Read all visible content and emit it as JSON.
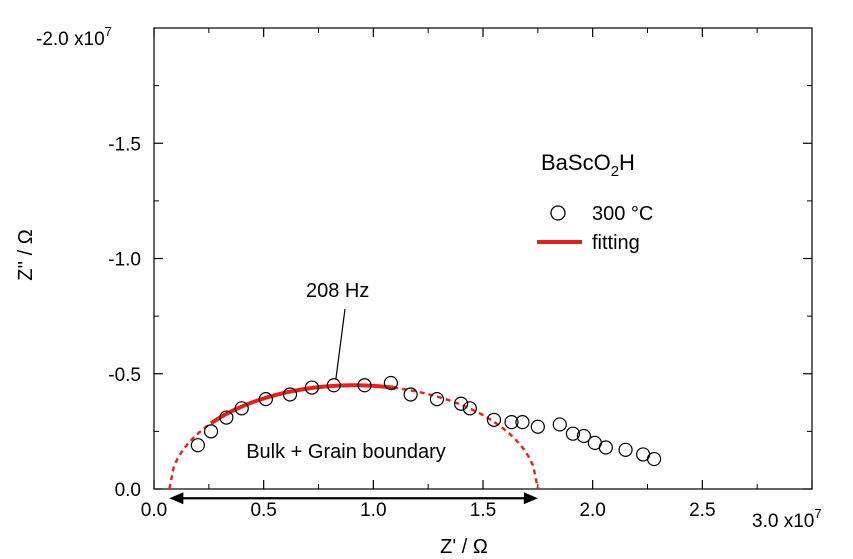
{
  "chart_data": {
    "type": "scatter",
    "xlabel": "Z' / Ω",
    "ylabel": "Z'' / Ω",
    "xlim": [
      0,
      30000000.0
    ],
    "ylim": [
      0,
      -20000000.0
    ],
    "y_inverted": true,
    "grid": false,
    "x_ticks": [
      {
        "value": 0.0,
        "label": "0.0"
      },
      {
        "value": 5000000.0,
        "label": "0.5"
      },
      {
        "value": 10000000.0,
        "label": "1.0"
      },
      {
        "value": 15000000.0,
        "label": "1.5"
      },
      {
        "value": 20000000.0,
        "label": "2.0"
      },
      {
        "value": 25000000.0,
        "label": "2.5"
      }
    ],
    "y_ticks": [
      {
        "value": 0.0,
        "label": "0.0"
      },
      {
        "value": -5000000.0,
        "label": "-0.5"
      },
      {
        "value": -10000000.0,
        "label": "-1.0"
      },
      {
        "value": -15000000.0,
        "label": "-1.5"
      }
    ],
    "x_scale_label": {
      "base": "3.0 x10",
      "exp": "7"
    },
    "y_scale_label": {
      "base": "-2.0 x10",
      "exp": "7"
    },
    "compound": {
      "main": "BaScO",
      "sub": "2",
      "tail": "H"
    },
    "series": [
      {
        "name": "300 °C",
        "style": "open-circle",
        "color": "#000000",
        "x": [
          2000000.0,
          2600000.0,
          3300000.0,
          4000000.0,
          5100000.0,
          6200000.0,
          7200000.0,
          8200000.0,
          9600000.0,
          10800000.0,
          11700000.0,
          12900000.0,
          14000000.0,
          14400000.0,
          15500000.0,
          16300000.0,
          16800000.0,
          17500000.0,
          18500000.0,
          19100000.0,
          19600000.0,
          20100000.0,
          20600000.0,
          21500000.0,
          22300000.0,
          22800000.0
        ],
        "y": [
          -1900000.0,
          -2500000.0,
          -3100000.0,
          -3500000.0,
          -3900000.0,
          -4100000.0,
          -4400000.0,
          -4500000.0,
          -4500000.0,
          -4600000.0,
          -4100000.0,
          -3900000.0,
          -3700000.0,
          -3500000.0,
          -3000000.0,
          -2900000.0,
          -2900000.0,
          -2700000.0,
          -2800000.0,
          -2400000.0,
          -2300000.0,
          -2000000.0,
          -1800000.0,
          -1700000.0,
          -1500000.0,
          -1300000.0
        ]
      },
      {
        "name": "fitting",
        "style": "line",
        "color": "#e8201a",
        "arc": {
          "x_start": 700000.0,
          "x_end": 17500000.0,
          "y_peak": -4500000.0
        },
        "solid_range": [
          2600000.0,
          11000000.0
        ]
      }
    ],
    "annotations": [
      {
        "text": "208 Hz",
        "point": [
          8200000.0,
          -4500000.0
        ]
      },
      {
        "text": "Bulk + Grain boundary",
        "arrow_from": 700000.0,
        "arrow_to": 17500000.0,
        "y": 400000.0
      }
    ],
    "legend_placement": "right"
  }
}
